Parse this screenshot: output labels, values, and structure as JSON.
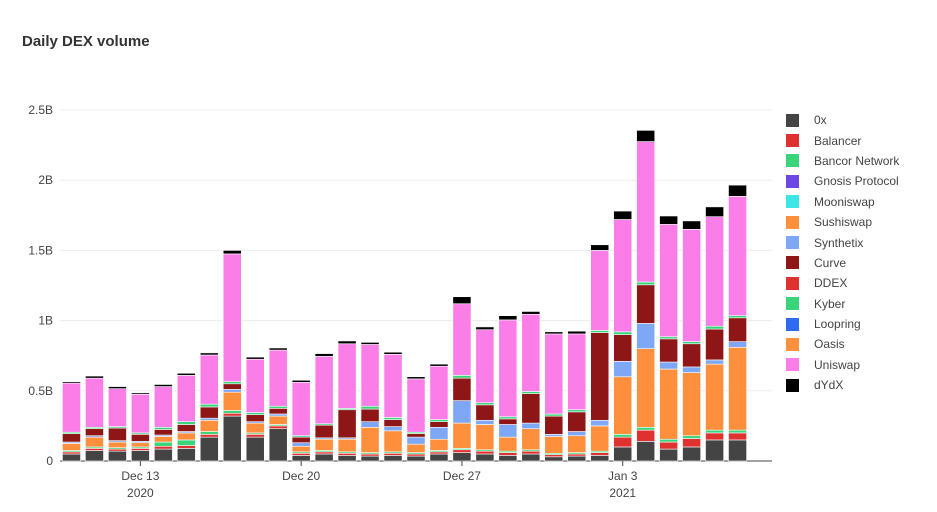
{
  "chart_title": "Daily DEX volume",
  "chart_data": {
    "type": "bar",
    "stacked": true,
    "title": "Daily DEX volume",
    "xlabel": "",
    "ylabel": "",
    "ylim": [
      0,
      2500000000
    ],
    "y_ticks": [
      {
        "value": 0,
        "label": "0"
      },
      {
        "value": 500000000,
        "label": "0.5B"
      },
      {
        "value": 1000000000,
        "label": "1B"
      },
      {
        "value": 1500000000,
        "label": "1.5B"
      },
      {
        "value": 2000000000,
        "label": "2B"
      },
      {
        "value": 2500000000,
        "label": "2.5B"
      }
    ],
    "x_ticks": [
      {
        "category": "2020-12-13",
        "label": "Dec 13",
        "sublabel": "2020"
      },
      {
        "category": "2020-12-20",
        "label": "Dec 20",
        "sublabel": ""
      },
      {
        "category": "2020-12-27",
        "label": "Dec 27",
        "sublabel": ""
      },
      {
        "category": "2021-01-03",
        "label": "Jan 3",
        "sublabel": "2021"
      }
    ],
    "grid": true,
    "legend_position": "right",
    "categories": [
      "2020-12-10",
      "2020-12-11",
      "2020-12-12",
      "2020-12-13",
      "2020-12-14",
      "2020-12-15",
      "2020-12-16",
      "2020-12-17",
      "2020-12-18",
      "2020-12-19",
      "2020-12-20",
      "2020-12-21",
      "2020-12-22",
      "2020-12-23",
      "2020-12-24",
      "2020-12-25",
      "2020-12-26",
      "2020-12-27",
      "2020-12-28",
      "2020-12-29",
      "2020-12-30",
      "2020-12-31",
      "2021-01-01",
      "2021-01-02",
      "2021-01-03",
      "2021-01-04",
      "2021-01-05",
      "2021-01-06",
      "2021-01-07",
      "2021-01-08",
      "2021-01-09"
    ],
    "series": [
      {
        "name": "0x",
        "color": "#444444",
        "values": [
          50000000,
          75000000,
          70000000,
          75000000,
          85000000,
          90000000,
          170000000,
          320000000,
          170000000,
          230000000,
          40000000,
          50000000,
          40000000,
          35000000,
          40000000,
          35000000,
          50000000,
          60000000,
          50000000,
          40000000,
          50000000,
          30000000,
          35000000,
          40000000,
          100000000,
          140000000,
          85000000,
          100000000,
          150000000,
          150000000,
          0
        ]
      },
      {
        "name": "Balancer",
        "color": "#e03131",
        "values": [
          15000000,
          15000000,
          15000000,
          15000000,
          20000000,
          20000000,
          20000000,
          20000000,
          20000000,
          20000000,
          15000000,
          15000000,
          15000000,
          15000000,
          15000000,
          15000000,
          15000000,
          20000000,
          20000000,
          20000000,
          20000000,
          15000000,
          15000000,
          20000000,
          70000000,
          80000000,
          50000000,
          60000000,
          50000000,
          50000000,
          0
        ]
      },
      {
        "name": "Bancor Network",
        "color": "#3ad47a",
        "values": [
          10000000,
          10000000,
          10000000,
          10000000,
          30000000,
          40000000,
          20000000,
          20000000,
          10000000,
          10000000,
          10000000,
          10000000,
          10000000,
          10000000,
          10000000,
          10000000,
          10000000,
          10000000,
          10000000,
          10000000,
          10000000,
          10000000,
          10000000,
          10000000,
          20000000,
          20000000,
          20000000,
          20000000,
          20000000,
          20000000,
          0
        ]
      },
      {
        "name": "Gnosis Protocol",
        "color": "#6c47e6",
        "values": [
          0,
          0,
          0,
          0,
          0,
          0,
          0,
          0,
          0,
          0,
          0,
          0,
          0,
          0,
          0,
          0,
          0,
          0,
          0,
          0,
          0,
          0,
          0,
          0,
          0,
          0,
          0,
          0,
          0,
          0,
          0
        ]
      },
      {
        "name": "Mooniswap",
        "color": "#3de6e6",
        "values": [
          0,
          0,
          0,
          0,
          0,
          0,
          0,
          0,
          0,
          0,
          0,
          0,
          0,
          0,
          0,
          0,
          0,
          0,
          0,
          0,
          0,
          0,
          0,
          0,
          0,
          0,
          0,
          0,
          0,
          0,
          0
        ]
      },
      {
        "name": "Sushiswap",
        "color": "#fd8f3d",
        "values": [
          50000000,
          70000000,
          40000000,
          30000000,
          40000000,
          50000000,
          80000000,
          130000000,
          70000000,
          60000000,
          40000000,
          80000000,
          90000000,
          180000000,
          150000000,
          60000000,
          80000000,
          180000000,
          180000000,
          100000000,
          150000000,
          120000000,
          120000000,
          180000000,
          410000000,
          560000000,
          500000000,
          450000000,
          470000000,
          590000000,
          0
        ]
      },
      {
        "name": "Synthetix",
        "color": "#7ea7f5",
        "values": [
          10000000,
          10000000,
          10000000,
          10000000,
          10000000,
          10000000,
          15000000,
          20000000,
          10000000,
          15000000,
          25000000,
          10000000,
          10000000,
          40000000,
          30000000,
          50000000,
          85000000,
          160000000,
          30000000,
          90000000,
          40000000,
          15000000,
          30000000,
          40000000,
          110000000,
          180000000,
          50000000,
          40000000,
          30000000,
          40000000,
          0
        ]
      },
      {
        "name": "Curve",
        "color": "#8e1616",
        "values": [
          60000000,
          50000000,
          90000000,
          50000000,
          40000000,
          50000000,
          80000000,
          40000000,
          50000000,
          40000000,
          40000000,
          90000000,
          200000000,
          90000000,
          50000000,
          25000000,
          40000000,
          160000000,
          110000000,
          40000000,
          210000000,
          130000000,
          140000000,
          625000000,
          190000000,
          275000000,
          165000000,
          165000000,
          220000000,
          170000000,
          0
        ]
      },
      {
        "name": "DDEX",
        "color": "#e03131",
        "values": [
          0,
          0,
          0,
          0,
          0,
          0,
          0,
          0,
          0,
          0,
          0,
          0,
          0,
          0,
          0,
          0,
          0,
          0,
          0,
          0,
          0,
          0,
          0,
          0,
          0,
          0,
          0,
          0,
          0,
          0,
          0
        ]
      },
      {
        "name": "Kyber",
        "color": "#3ad47a",
        "values": [
          10000000,
          10000000,
          10000000,
          10000000,
          15000000,
          20000000,
          20000000,
          15000000,
          15000000,
          15000000,
          10000000,
          10000000,
          10000000,
          20000000,
          15000000,
          10000000,
          15000000,
          20000000,
          15000000,
          15000000,
          15000000,
          15000000,
          15000000,
          15000000,
          20000000,
          20000000,
          15000000,
          15000000,
          20000000,
          15000000,
          0
        ]
      },
      {
        "name": "Loopring",
        "color": "#2f6bf0",
        "values": [
          0,
          0,
          0,
          0,
          0,
          0,
          0,
          0,
          0,
          0,
          0,
          0,
          0,
          0,
          0,
          0,
          0,
          0,
          0,
          0,
          0,
          0,
          0,
          0,
          0,
          0,
          0,
          0,
          0,
          0,
          0
        ]
      },
      {
        "name": "Oasis",
        "color": "#fd8f3d",
        "values": [
          0,
          0,
          0,
          0,
          0,
          0,
          0,
          0,
          0,
          0,
          0,
          0,
          0,
          0,
          0,
          0,
          0,
          0,
          0,
          0,
          0,
          0,
          0,
          0,
          0,
          0,
          0,
          0,
          0,
          0,
          0
        ]
      },
      {
        "name": "Uniswap",
        "color": "#fb7ee8",
        "values": [
          350000000,
          350000000,
          270000000,
          275000000,
          290000000,
          330000000,
          350000000,
          910000000,
          380000000,
          400000000,
          380000000,
          480000000,
          460000000,
          440000000,
          450000000,
          380000000,
          380000000,
          510000000,
          520000000,
          690000000,
          550000000,
          570000000,
          540000000,
          570000000,
          800000000,
          1000000000,
          800000000,
          800000000,
          780000000,
          850000000,
          0
        ]
      },
      {
        "name": "dYdX",
        "color": "#000000",
        "values": [
          10000000,
          15000000,
          15000000,
          10000000,
          15000000,
          15000000,
          15000000,
          25000000,
          15000000,
          15000000,
          15000000,
          20000000,
          20000000,
          15000000,
          15000000,
          15000000,
          15000000,
          50000000,
          20000000,
          30000000,
          20000000,
          15000000,
          20000000,
          40000000,
          60000000,
          80000000,
          60000000,
          60000000,
          70000000,
          80000000,
          0
        ]
      }
    ]
  }
}
